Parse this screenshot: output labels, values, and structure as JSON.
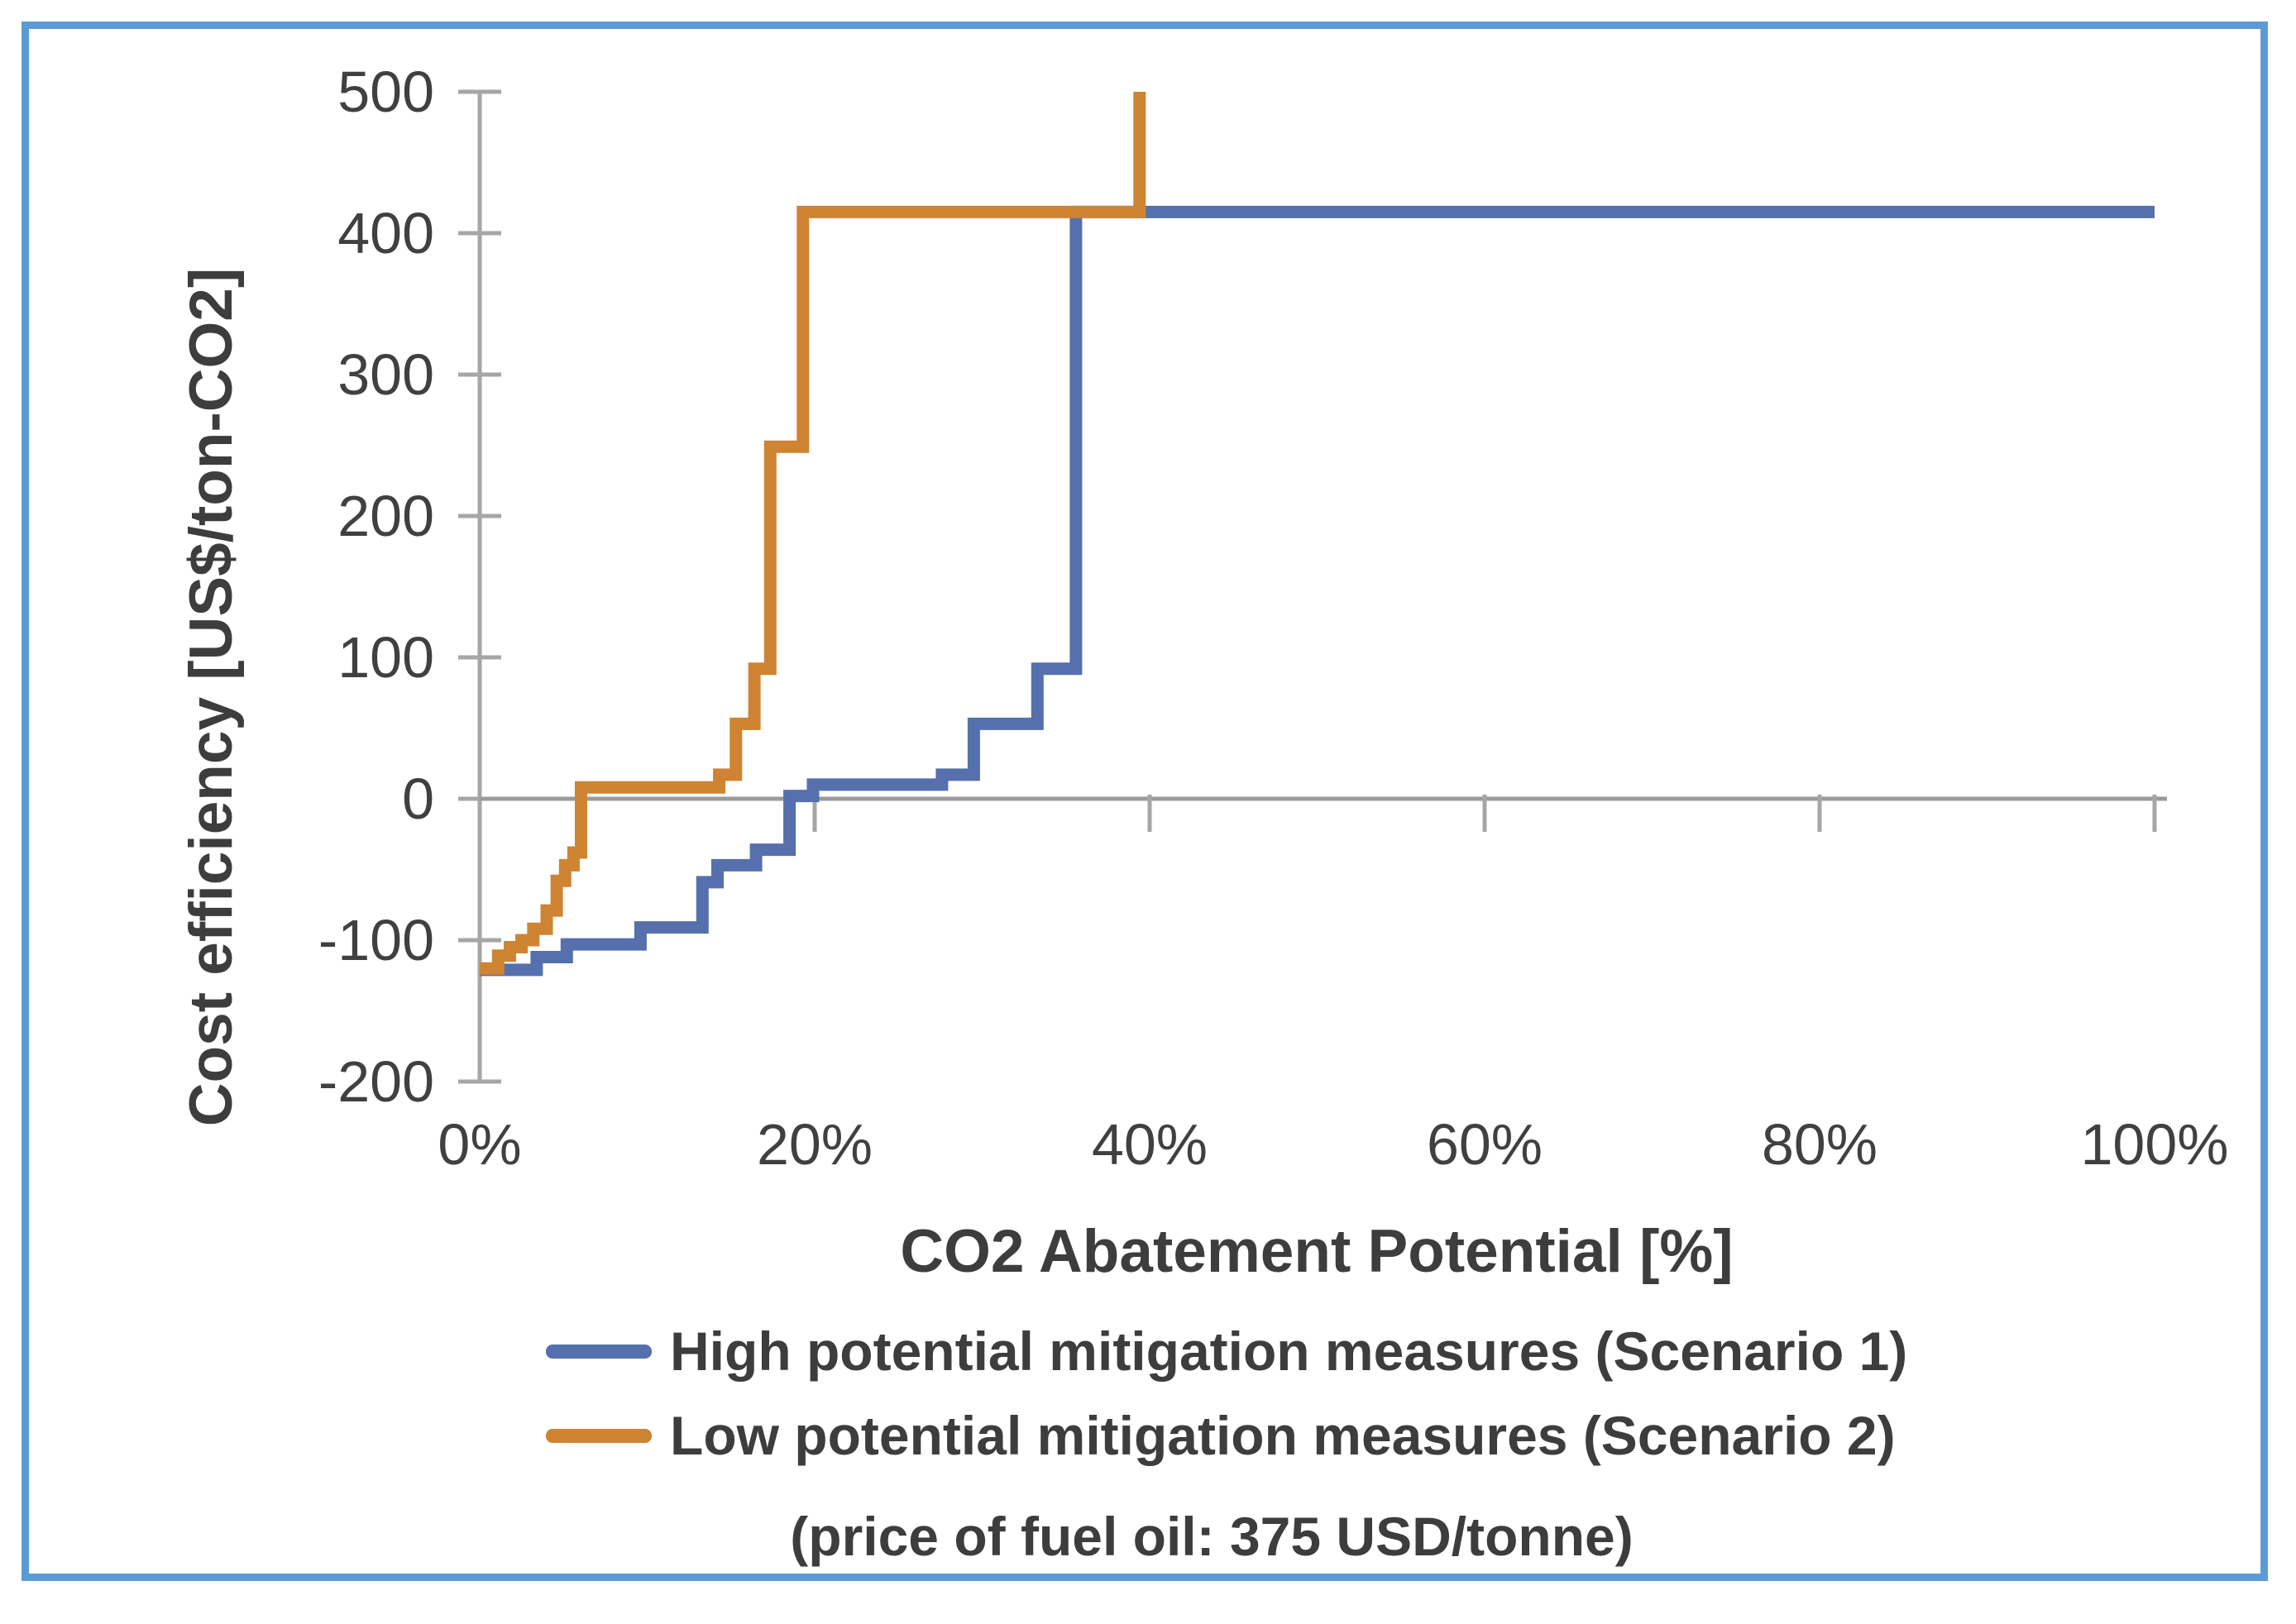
{
  "frame": {
    "border_color": "#5B9BD5"
  },
  "chart_data": {
    "type": "line",
    "subtype": "step-after",
    "title": "",
    "caption": "(price of fuel oil: 375 USD/tonne)",
    "x_axis": {
      "label": "CO2 Abatement Potential [%]",
      "tick_labels": [
        "0%",
        "20%",
        "40%",
        "60%",
        "80%",
        "100%"
      ],
      "tick_values": [
        0,
        20,
        40,
        60,
        80,
        100
      ],
      "range": [
        0,
        100
      ]
    },
    "y_axis": {
      "label": "Cost efficiency [US$/ton-CO2]",
      "tick_labels": [
        "500",
        "400",
        "300",
        "200",
        "100",
        "0",
        "-100",
        "-200"
      ],
      "tick_values": [
        500,
        400,
        300,
        200,
        100,
        0,
        -100,
        -200
      ],
      "range": [
        -200,
        500
      ]
    },
    "grid": "zero-line-only",
    "legend_position": "bottom",
    "axis_color": "#a6a6a6",
    "zero_line_color": "#9b9b9b",
    "series": [
      {
        "name": "High potential mitigation measures (Scenario 1)",
        "color": "#5570AD",
        "points": [
          [
            0,
            -121
          ],
          [
            3.4,
            -112
          ],
          [
            5.2,
            -103
          ],
          [
            9.6,
            -91
          ],
          [
            13.3,
            -59
          ],
          [
            14.2,
            -47
          ],
          [
            16.5,
            -36
          ],
          [
            18.5,
            2
          ],
          [
            19.9,
            10
          ],
          [
            27.6,
            17
          ],
          [
            29.5,
            53
          ],
          [
            33.3,
            92
          ],
          [
            35.6,
            415
          ],
          [
            100,
            415
          ]
        ]
      },
      {
        "name": "Low potential mitigation measures (Scenario 2)",
        "color": "#CE8433",
        "points": [
          [
            0,
            -120
          ],
          [
            1.1,
            -111
          ],
          [
            1.8,
            -105
          ],
          [
            2.5,
            -100
          ],
          [
            3.2,
            -92
          ],
          [
            4.0,
            -79
          ],
          [
            4.6,
            -58
          ],
          [
            5.1,
            -47
          ],
          [
            5.6,
            -38
          ],
          [
            6.05,
            8
          ],
          [
            14.3,
            17
          ],
          [
            15.3,
            53
          ],
          [
            16.4,
            92
          ],
          [
            17.35,
            249
          ],
          [
            19.3,
            415
          ],
          [
            39.4,
            500
          ]
        ]
      }
    ]
  }
}
